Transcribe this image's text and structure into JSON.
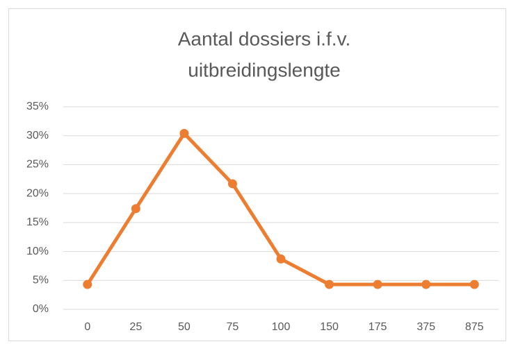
{
  "chart_data": {
    "type": "line",
    "title": [
      "Aantal dossiers i.f.v.",
      "uitbreidingslengte"
    ],
    "categories": [
      "0",
      "25",
      "50",
      "75",
      "100",
      "150",
      "175",
      "375",
      "875"
    ],
    "series": [
      {
        "color": "#ed7d31",
        "values": [
          4.3,
          17.4,
          30.4,
          21.7,
          8.7,
          4.3,
          4.3,
          4.3,
          4.3
        ]
      }
    ],
    "ylim": [
      0,
      35
    ],
    "yticks": [
      {
        "value": 0,
        "label": "0%"
      },
      {
        "value": 5,
        "label": "5%"
      },
      {
        "value": 10,
        "label": "10%"
      },
      {
        "value": 15,
        "label": "15%"
      },
      {
        "value": 20,
        "label": "20%"
      },
      {
        "value": 25,
        "label": "25%"
      },
      {
        "value": 30,
        "label": "30%"
      },
      {
        "value": 35,
        "label": "35%"
      }
    ],
    "grid": true
  }
}
